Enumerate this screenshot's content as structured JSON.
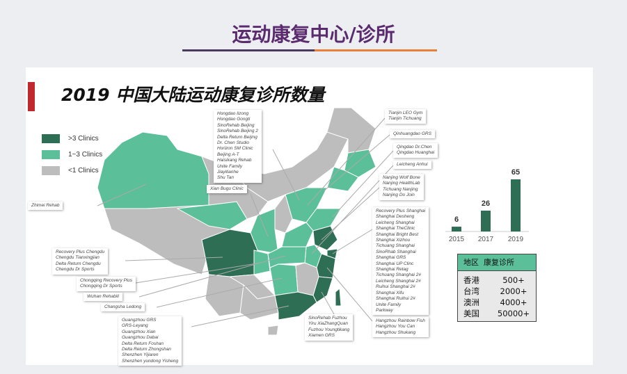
{
  "page_title": "运动康复中心/诊所",
  "slide_title": "2019 中国大陆运动康复诊所数量",
  "colors": {
    "dark_green": "#2e6e55",
    "light_green": "#5bbf9a",
    "gray": "#bdbdbd",
    "title_purple": "#5b2b6f",
    "accent_red": "#c0282d",
    "accent_orange": "#e8803a"
  },
  "legend": [
    {
      "label": ">3 Clinics",
      "color": "#2e6e55"
    },
    {
      "label": "1~3 Clinics",
      "color": "#5bbf9a"
    },
    {
      "label": "<1 Clinics",
      "color": "#bdbdbd"
    }
  ],
  "labels": {
    "beijing": [
      "Hongdao lizong",
      "Hongdao Gongti",
      "SinoRehab Beijing",
      "SinoRehab Beijing 2",
      "Delta Return Beijing",
      "Dr. Chen Studio",
      "Horizon SM Clinic",
      "Beijing A-T",
      "Haisikang Rehab",
      "Unite Family",
      "Jiayitianhe",
      "Shu Tan"
    ],
    "xian": [
      "Xian Bugu Clinic"
    ],
    "tianjin": [
      "Tianjin LEO Gym",
      "Tianjin Tichuang"
    ],
    "qinhuangdao": [
      "Qinhuangdao GRS"
    ],
    "qingdao": [
      "Qingdao Dr.Chen",
      "Qingdao Huanghai"
    ],
    "anhui": [
      "Leicheng Anhui"
    ],
    "nanjing": [
      "Nanjing Wolf Bone",
      "Nanjing HealthLab",
      "Tichuang Nanjing",
      "Nanjing Do Join"
    ],
    "shanghai": [
      "Recovery Plus Shanghai",
      "Shanghai Desheng",
      "Leicheng Shanghai",
      "Shanghai TheClinic",
      "Shanghai Bright Best",
      "Shanghai Xizhou",
      "Tichuang Shanghai",
      "SinoRhab Shanghai",
      "Shanghai GRS",
      "Shanghai UP Clinc",
      "Shanghai Retag",
      "Tichuang Shanghai 2#",
      "Leicheng Shanghai 2#",
      "Ruihui Shanghai 2#",
      "Shanghai Xifu",
      "Shanghai Ruihui 2#",
      "Unite Family",
      "Parkway"
    ],
    "hangzhou": [
      "Hangzhou  Rainbow Fish",
      "Hangzhou You Can",
      "Hangzhou Shukang"
    ],
    "fuzhou": [
      "SinoRehab Fuzhou",
      "Yiru XiaZhangQuan",
      "Fuzhou Youngtikang",
      "Xiamen GRS"
    ],
    "xinjiang": [
      "Zhimei Rehab"
    ],
    "chengdu": [
      "Recovery Plus Chengdu",
      "Chengdu Tianxingjian",
      "Delta Return Chengdu",
      "Chengdu Dr Sports"
    ],
    "chongqing": [
      "Chongqing Recovery Plus",
      "Chongqing Dr Sports"
    ],
    "wuhan": [
      "Wuhan Rehabili"
    ],
    "changsha": [
      "Changsha Ledong"
    ],
    "guangzhou": [
      "Guangzhou GRS",
      "GRS-Leyang",
      "Guangzhou Xian",
      "Guangzhou Dabai",
      "Delta Return Foshan",
      "Delta Return Zhongshan",
      "Shenzhen Yijiaren",
      "Shenzhen yundong Yisheng"
    ]
  },
  "chart_data": {
    "type": "bar",
    "categories": [
      "2015",
      "2017",
      "2019"
    ],
    "values": [
      6,
      26,
      65
    ],
    "title": "",
    "xlabel": "",
    "ylabel": "",
    "color": "#2e6e55"
  },
  "table": {
    "headers": [
      "地区",
      "康复诊所"
    ],
    "rows": [
      [
        "香港",
        "500+"
      ],
      [
        "台湾",
        "2000+"
      ],
      [
        "澳洲",
        "4000+"
      ],
      [
        "美国",
        "50000+"
      ]
    ]
  }
}
